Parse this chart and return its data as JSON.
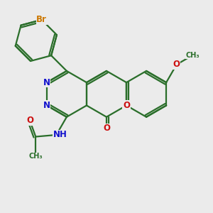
{
  "background_color": "#ebebeb",
  "bond_color": "#2a6e2a",
  "bond_width": 1.6,
  "atom_colors": {
    "N": "#1010cc",
    "O": "#cc1010",
    "Br": "#cc7700",
    "C": "#2a6e2a"
  },
  "font_size_atom": 8.5,
  "xlim": [
    0,
    10
  ],
  "ylim": [
    0,
    10
  ]
}
